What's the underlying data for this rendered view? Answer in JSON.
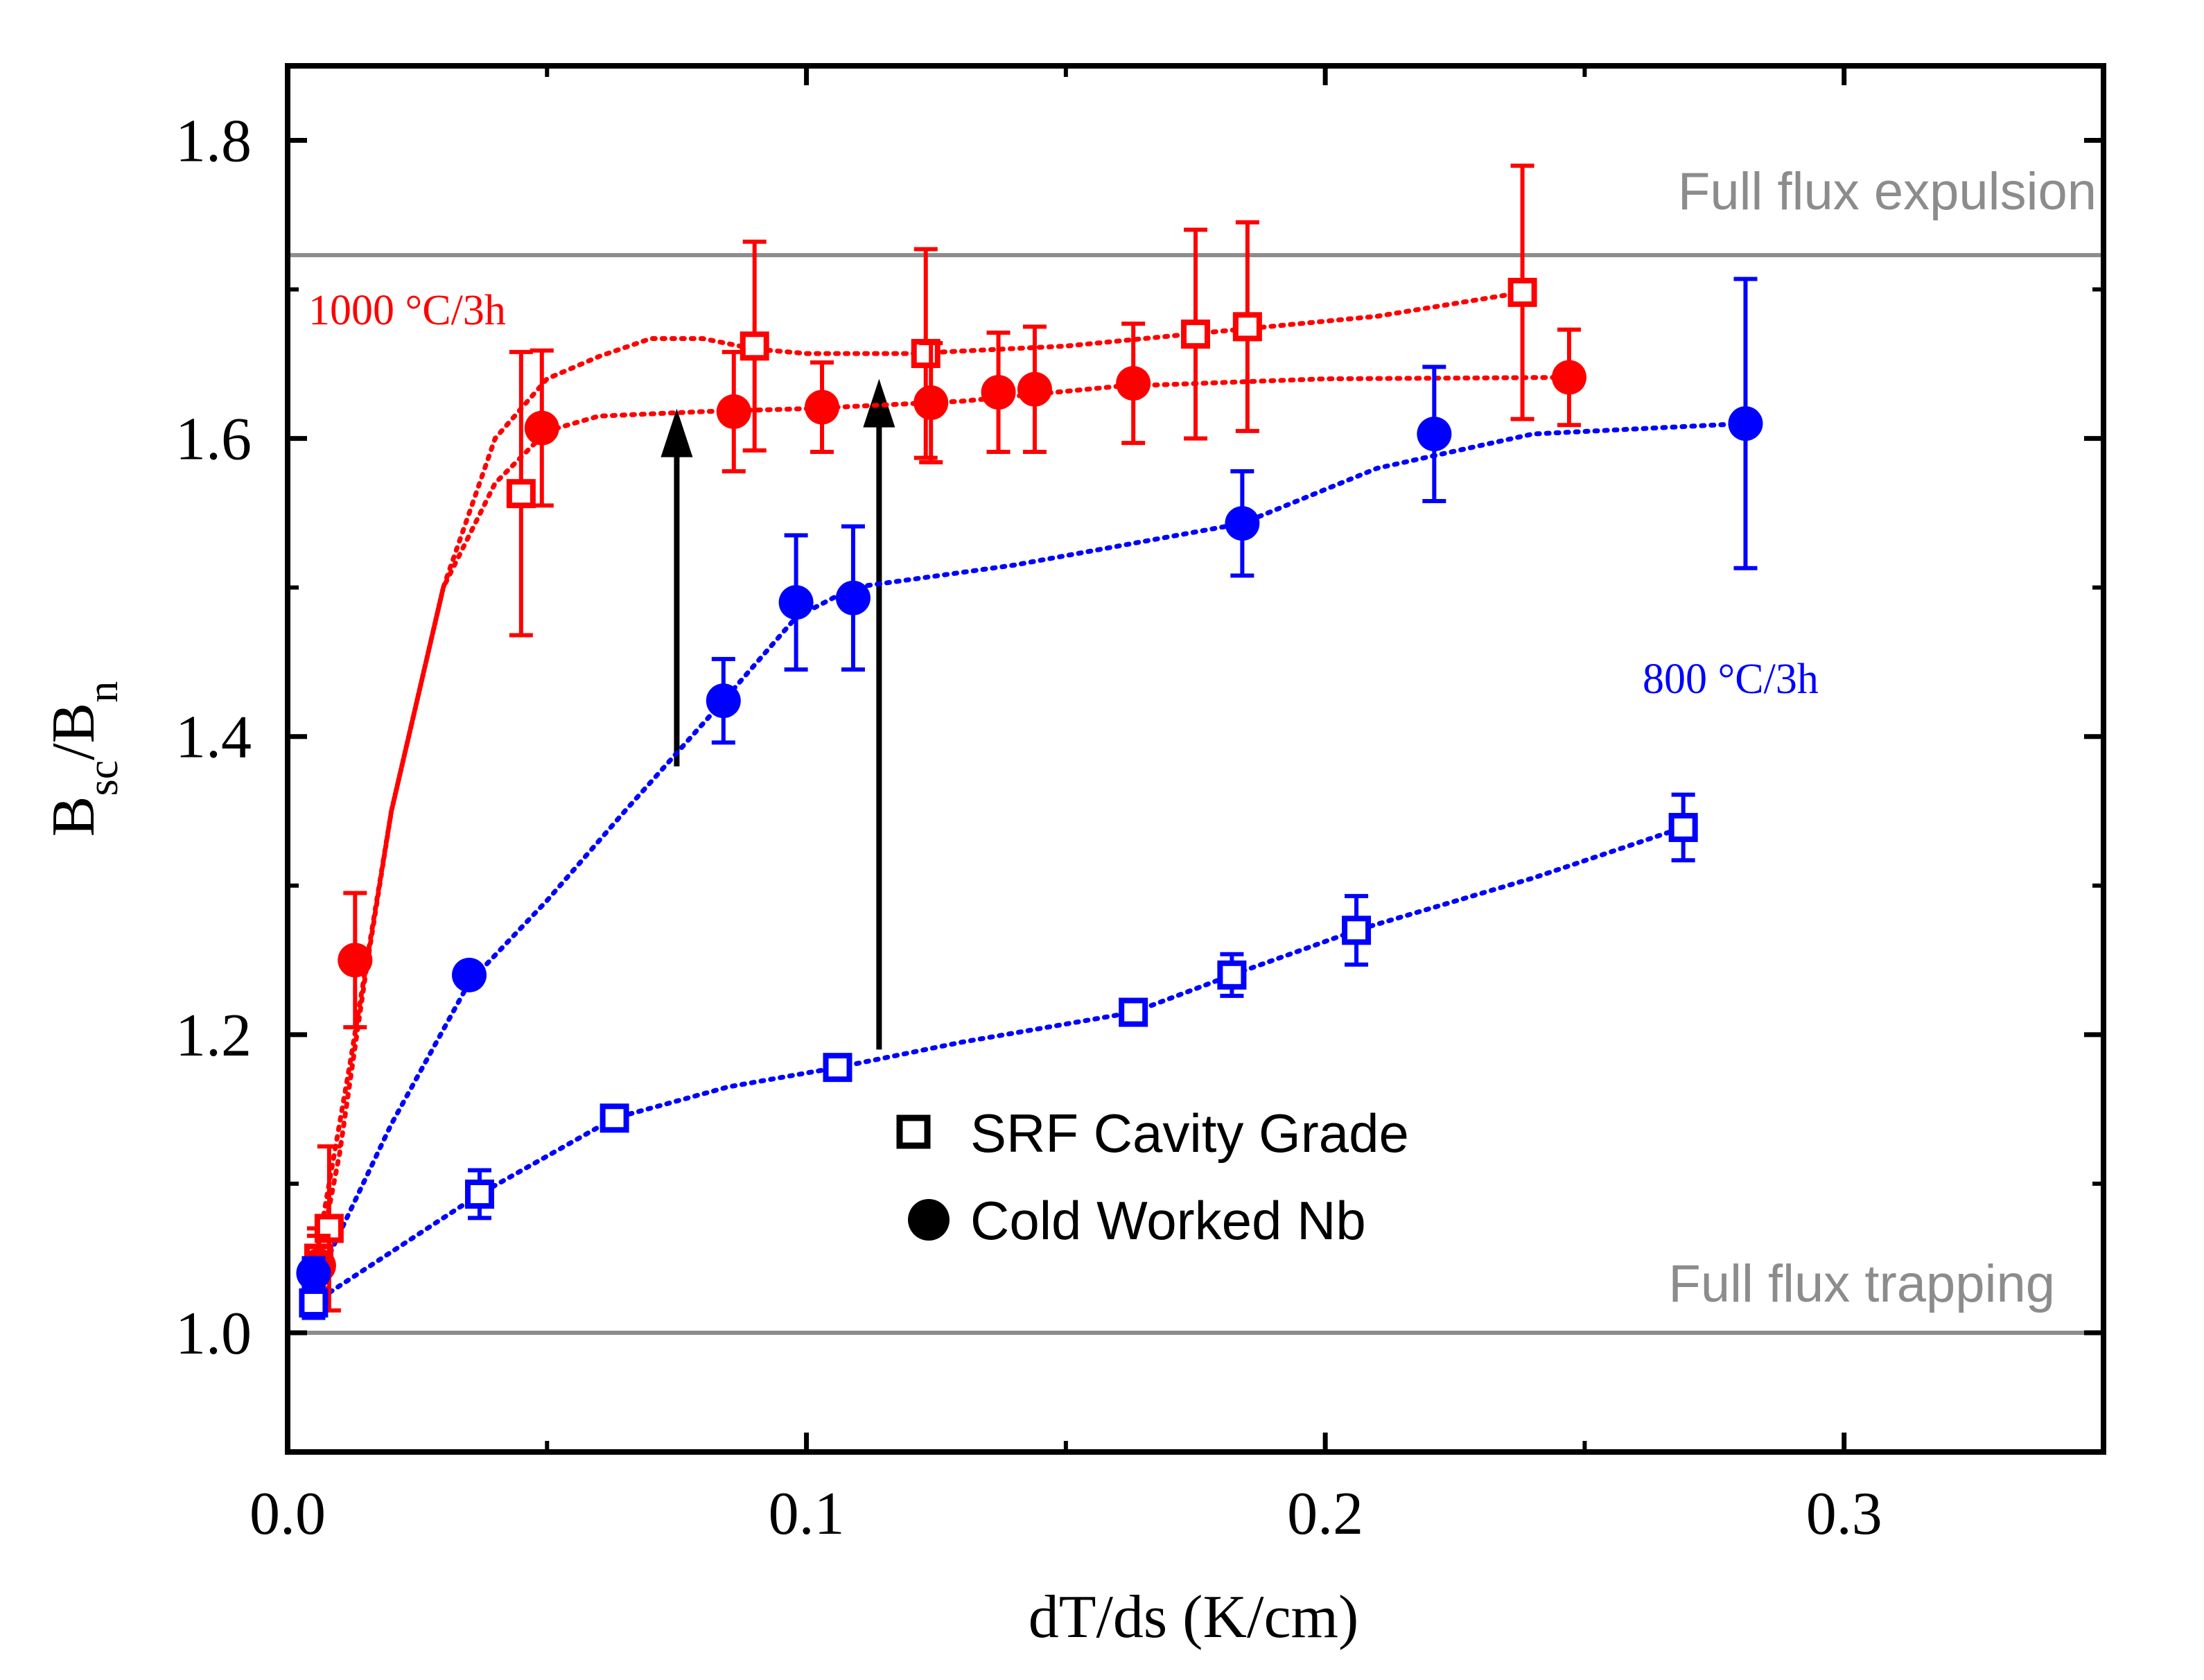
{
  "chart_data": {
    "type": "scatter",
    "xlabel": "dT/ds (K/cm)",
    "ylabel": {
      "base": "B",
      "sub1": "sc",
      "sep": "/B",
      "sub2": "n"
    },
    "xlim": [
      0.0,
      0.35
    ],
    "ylim": [
      0.92,
      1.85
    ],
    "xticks": [
      0.0,
      0.1,
      0.2,
      0.3
    ],
    "xtick_labels": [
      "0.0",
      "0.1",
      "0.2",
      "0.3"
    ],
    "yticks": [
      1.0,
      1.2,
      1.4,
      1.6,
      1.8
    ],
    "ytick_labels": [
      "1.0",
      "1.2",
      "1.4",
      "1.6",
      "1.8"
    ],
    "reference_lines": [
      {
        "name": "full-flux-expulsion",
        "y": 1.723,
        "label": "Full flux expulsion",
        "color": "#8c8c8c"
      },
      {
        "name": "full-flux-trapping",
        "y": 1.0,
        "label": "Full flux trapping",
        "color": "#8c8c8c"
      }
    ],
    "series": [
      {
        "id": "red-open",
        "name": "SRF Cavity Grade, 1000 °C/3h",
        "color": "#ff0000",
        "marker": "square-open",
        "x": [
          0.006,
          0.008,
          0.045,
          0.09,
          0.123,
          0.175,
          0.185,
          0.238
        ],
        "y": [
          1.05,
          1.07,
          1.563,
          1.662,
          1.657,
          1.67,
          1.675,
          1.698
        ],
        "err": [
          0.02,
          0.055,
          0.095,
          0.07,
          0.07,
          0.07,
          0.07,
          0.085
        ],
        "fit": [
          [
            0.005,
            1.04
          ],
          [
            0.012,
            1.18
          ],
          [
            0.02,
            1.35
          ],
          [
            0.03,
            1.5
          ],
          [
            0.04,
            1.6
          ],
          [
            0.05,
            1.64
          ],
          [
            0.06,
            1.655
          ],
          [
            0.07,
            1.667
          ],
          [
            0.08,
            1.667
          ],
          [
            0.09,
            1.66
          ],
          [
            0.1,
            1.657
          ],
          [
            0.12,
            1.657
          ],
          [
            0.15,
            1.662
          ],
          [
            0.18,
            1.672
          ],
          [
            0.21,
            1.682
          ],
          [
            0.238,
            1.698
          ]
        ]
      },
      {
        "id": "red-filled",
        "name": "Cold Worked Nb, 1000 °C/3h",
        "color": "#ff0000",
        "marker": "circle-filled",
        "x": [
          0.006,
          0.013,
          0.049,
          0.086,
          0.103,
          0.124,
          0.137,
          0.144,
          0.163,
          0.247
        ],
        "y": [
          1.045,
          1.25,
          1.607,
          1.618,
          1.621,
          1.624,
          1.631,
          1.633,
          1.637,
          1.641
        ],
        "err": [
          0.02,
          0.045,
          0.052,
          0.04,
          0.03,
          0.04,
          0.04,
          0.042,
          0.04,
          0.032
        ],
        "fit": [
          [
            0.005,
            1.03
          ],
          [
            0.01,
            1.12
          ],
          [
            0.015,
            1.24
          ],
          [
            0.02,
            1.35
          ],
          [
            0.03,
            1.5
          ],
          [
            0.04,
            1.57
          ],
          [
            0.05,
            1.605
          ],
          [
            0.06,
            1.615
          ],
          [
            0.08,
            1.618
          ],
          [
            0.1,
            1.62
          ],
          [
            0.13,
            1.625
          ],
          [
            0.16,
            1.635
          ],
          [
            0.2,
            1.64
          ],
          [
            0.247,
            1.641
          ]
        ]
      },
      {
        "id": "blue-filled",
        "name": "Cold Worked Nb, 800 °C/3h",
        "color": "#0000ff",
        "marker": "circle-filled",
        "x": [
          0.005,
          0.035,
          0.084,
          0.098,
          0.109,
          0.184,
          0.221,
          0.281
        ],
        "y": [
          1.04,
          1.24,
          1.424,
          1.49,
          1.493,
          1.543,
          1.603,
          1.61
        ],
        "err": [
          0.01,
          0.0,
          0.028,
          0.045,
          0.048,
          0.035,
          0.045,
          0.097
        ],
        "fit": [
          [
            0.005,
            1.03
          ],
          [
            0.02,
            1.14
          ],
          [
            0.035,
            1.235
          ],
          [
            0.05,
            1.29
          ],
          [
            0.065,
            1.35
          ],
          [
            0.084,
            1.424
          ],
          [
            0.098,
            1.48
          ],
          [
            0.109,
            1.5
          ],
          [
            0.14,
            1.515
          ],
          [
            0.184,
            1.543
          ],
          [
            0.21,
            1.58
          ],
          [
            0.24,
            1.603
          ],
          [
            0.281,
            1.61
          ]
        ]
      },
      {
        "id": "blue-open",
        "name": "SRF Cavity Grade, 800 °C/3h",
        "color": "#0000ff",
        "marker": "square-open",
        "x": [
          0.005,
          0.037,
          0.063,
          0.106,
          0.163,
          0.182,
          0.206,
          0.269
        ],
        "y": [
          1.02,
          1.093,
          1.144,
          1.178,
          1.215,
          1.24,
          1.27,
          1.339
        ],
        "err": [
          0.01,
          0.016,
          0.0,
          0.0,
          0.0,
          0.014,
          0.023,
          0.022
        ],
        "fit": [
          [
            0.005,
            1.02
          ],
          [
            0.037,
            1.093
          ],
          [
            0.063,
            1.144
          ],
          [
            0.085,
            1.165
          ],
          [
            0.106,
            1.178
          ],
          [
            0.13,
            1.195
          ],
          [
            0.163,
            1.215
          ],
          [
            0.182,
            1.24
          ],
          [
            0.206,
            1.27
          ],
          [
            0.24,
            1.305
          ],
          [
            0.269,
            1.339
          ]
        ]
      }
    ],
    "arrows": [
      {
        "x": 0.075,
        "from": 1.38,
        "to": 1.62
      },
      {
        "x": 0.114,
        "from": 1.19,
        "to": 1.64
      }
    ],
    "annotations": [
      {
        "id": "label-1000",
        "text": "1000 °C/3h",
        "color": "#ff0000"
      },
      {
        "id": "label-800",
        "text": "800 °C/3h",
        "color": "#0000ff"
      }
    ],
    "legend": {
      "position": "bottom-center",
      "items": [
        {
          "label": "SRF Cavity Grade",
          "marker": "square-open"
        },
        {
          "label": "Cold Worked Nb",
          "marker": "circle-filled"
        }
      ]
    }
  }
}
